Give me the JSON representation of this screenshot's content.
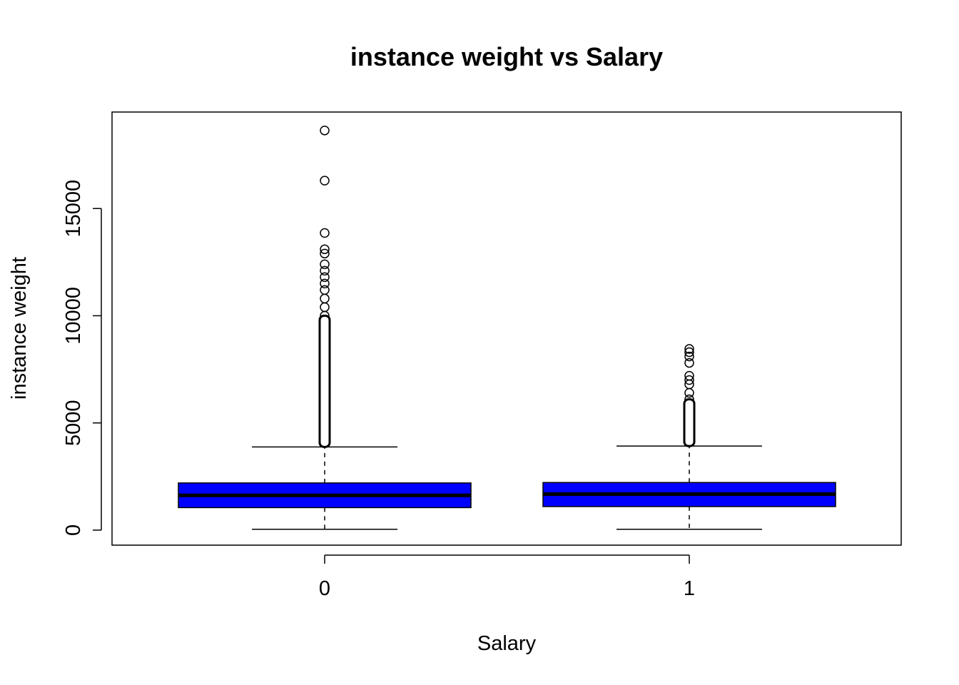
{
  "chart_data": {
    "type": "boxplot",
    "title": "instance weight vs Salary",
    "xlabel": "Salary",
    "ylabel": "instance weight",
    "categories": [
      "0",
      "1"
    ],
    "y_ticks": [
      0,
      5000,
      10000,
      15000
    ],
    "y_tick_labels": [
      "0",
      "5000",
      "10000",
      "15000"
    ],
    "ylim": [
      -700,
      19500
    ],
    "box_color": "#0000ff",
    "boxes": [
      {
        "category": "0",
        "whisker_low": 40,
        "q1": 1050,
        "median": 1620,
        "q3": 2200,
        "whisker_high": 3880,
        "outliers": [
          18640,
          16300,
          13860,
          13100,
          12900,
          12400,
          12100,
          11800,
          11500,
          11200,
          10800,
          10400,
          10000
        ]
      },
      {
        "category": "1",
        "whisker_low": 40,
        "q1": 1100,
        "median": 1680,
        "q3": 2220,
        "whisker_high": 3920,
        "outliers": [
          8450,
          8300,
          8100,
          7800,
          7200,
          7000,
          6800,
          6400,
          6100
        ]
      }
    ]
  }
}
